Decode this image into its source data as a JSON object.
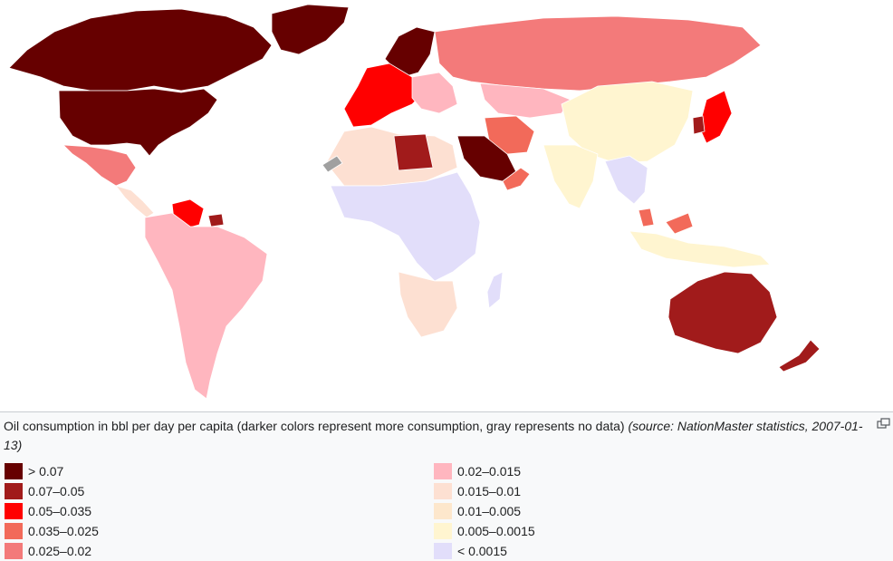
{
  "map": {
    "colors": {
      "ocean": "#ffffff",
      "border": "#ffffff",
      "no_data": "#a0a0a0"
    }
  },
  "caption": {
    "text": "Oil consumption in bbl per day per capita (darker colors represent more consumption, gray represents no data)",
    "source": "(source: NationMaster statistics, 2007-01-13)",
    "enlarge_icon": "enlarge-icon"
  },
  "legend": {
    "left": [
      {
        "label": "> 0.07",
        "color": "#660000"
      },
      {
        "label": "0.07–0.05",
        "color": "#a11b1b"
      },
      {
        "label": "0.05–0.035",
        "color": "#ff0000"
      },
      {
        "label": "0.035–0.025",
        "color": "#f26a5a"
      },
      {
        "label": "0.025–0.02",
        "color": "#f37a7a"
      }
    ],
    "right": [
      {
        "label": "0.02–0.015",
        "color": "#ffb6bf"
      },
      {
        "label": "0.015–0.01",
        "color": "#fde0d2"
      },
      {
        "label": "0.01–0.005",
        "color": "#fde7cc"
      },
      {
        "label": "0.005–0.0015",
        "color": "#fff5d0"
      },
      {
        "label": "< 0.0015",
        "color": "#e2defa"
      }
    ]
  }
}
